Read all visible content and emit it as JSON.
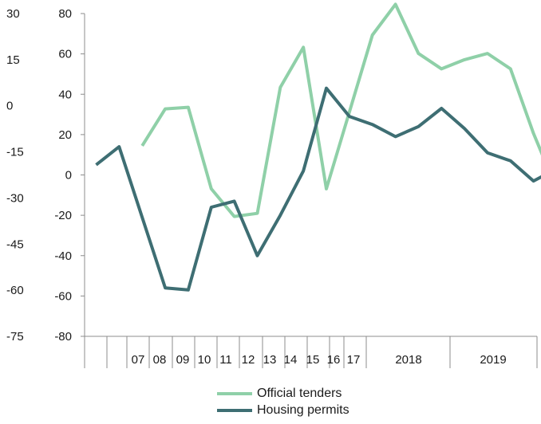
{
  "chart_data": {
    "type": "line",
    "left_axis": {
      "ticks": [
        30,
        15,
        0,
        -15,
        -30,
        -45,
        -60,
        -75
      ],
      "ylim": [
        -75,
        30
      ]
    },
    "right_axis": {
      "ticks": [
        80,
        60,
        40,
        20,
        0,
        -20,
        -40,
        -60,
        -80
      ],
      "ylim": [
        -80,
        80
      ]
    },
    "x_period_labels": [
      "07",
      "08",
      "09",
      "10",
      "11",
      "12",
      "13",
      "14",
      "15",
      "16",
      "17",
      "2018",
      "2019"
    ],
    "series": [
      {
        "name": "Official tenders",
        "color": "#8fd0a8",
        "axis": "left",
        "values": [
          null,
          null,
          -13,
          -1,
          -0.5,
          -27,
          -36,
          -35,
          6,
          19,
          -27,
          -2,
          23,
          33,
          17,
          12,
          15,
          17,
          12,
          -9,
          -27
        ]
      },
      {
        "name": "Housing permits",
        "color": "#3e6e73",
        "axis": "right",
        "values": [
          5,
          14,
          -21,
          -56,
          -57,
          -16,
          -13,
          -40,
          -20,
          2,
          43,
          29,
          25,
          19,
          24,
          33,
          23,
          11,
          7,
          -3,
          3
        ]
      }
    ],
    "legend_position": "bottom",
    "grid": false
  }
}
